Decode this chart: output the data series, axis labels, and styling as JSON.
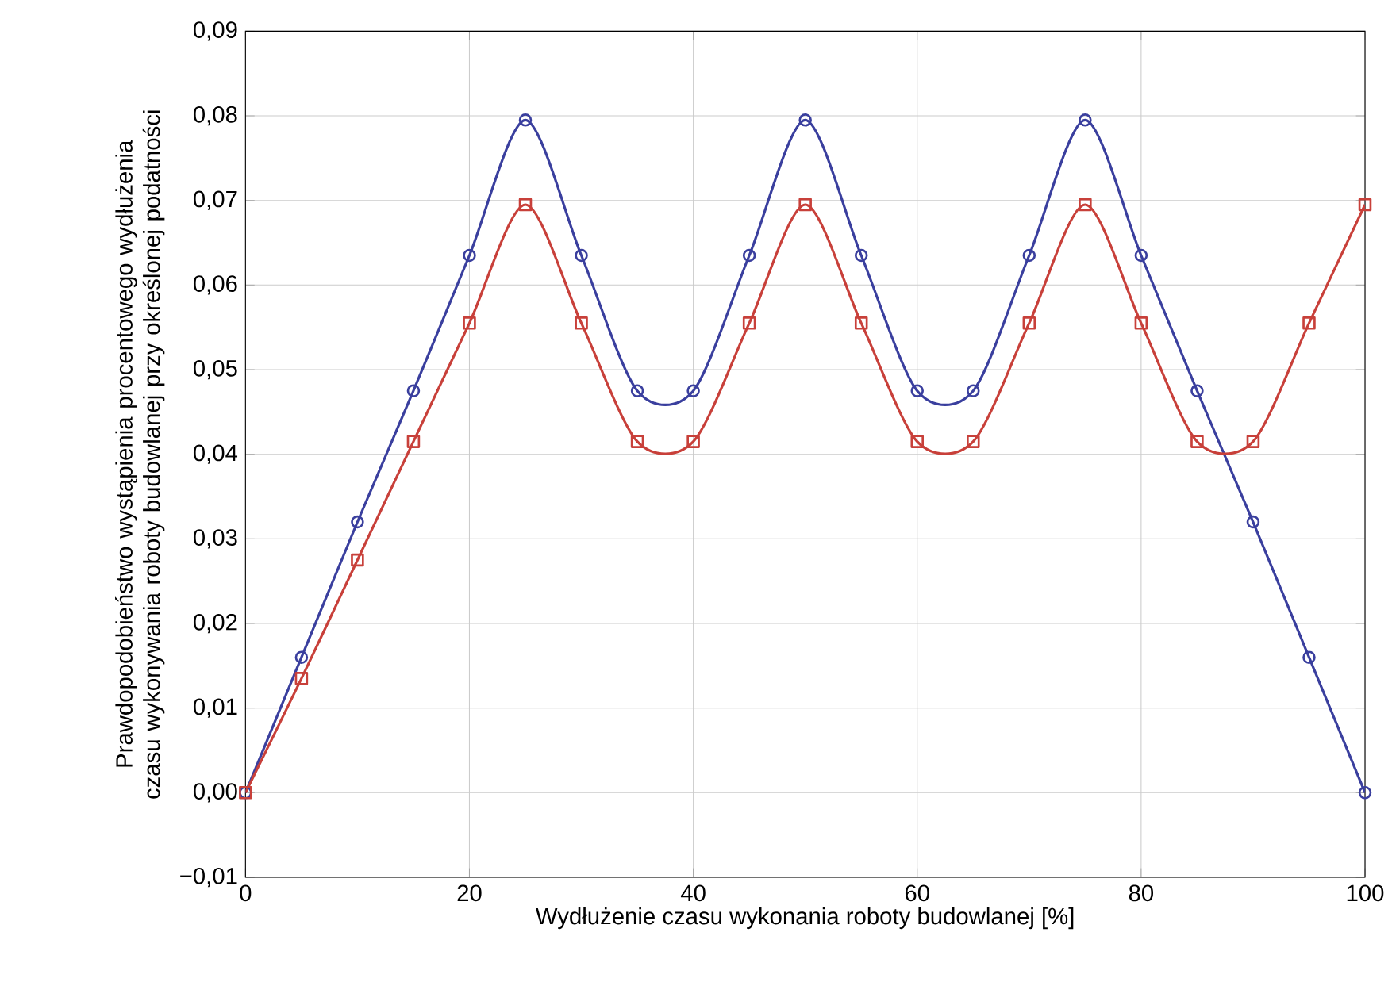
{
  "chart_data": {
    "type": "line",
    "xlabel": "Wydłużenie czasu wykonania roboty budowlanej [%]",
    "ylabel": "Prawdopodobieństwo wystąpienia procentowego wydłużenia czasu wykonywania roboty budowlanej przy określonej podatności",
    "x": [
      0,
      5,
      10,
      15,
      20,
      25,
      30,
      35,
      40,
      45,
      50,
      55,
      60,
      65,
      70,
      75,
      80,
      85,
      90,
      95,
      100
    ],
    "series": [
      {
        "color": "#3a3f9e",
        "marker": "circle",
        "values": [
          0,
          0.016,
          0.032,
          0.0475,
          0.0635,
          0.0795,
          0.0635,
          0.0475,
          0.0475,
          0.0635,
          0.0795,
          0.0635,
          0.0475,
          0.0475,
          0.0635,
          0.0795,
          0.0635,
          0.0475,
          0.032,
          0.016,
          0
        ]
      },
      {
        "color": "#c8403a",
        "marker": "square",
        "values": [
          0,
          0.0135,
          0.0275,
          0.0415,
          0.0555,
          0.0695,
          0.0555,
          0.0415,
          0.0415,
          0.0555,
          0.0695,
          0.0555,
          0.0415,
          0.0415,
          0.0555,
          0.0695,
          0.0555,
          0.0415,
          0.0415,
          0.0555,
          0.0695
        ]
      }
    ],
    "xlim": [
      0,
      100
    ],
    "xticks": [
      0,
      20,
      40,
      60,
      80,
      100
    ],
    "ylim": [
      -0.01,
      0.09
    ],
    "yticks": [
      {
        "value": -0.01,
        "label": "−0,01"
      },
      {
        "value": 0,
        "label": "0,00"
      },
      {
        "value": 0.01,
        "label": "0,01"
      },
      {
        "value": 0.02,
        "label": "0,02"
      },
      {
        "value": 0.03,
        "label": "0,03"
      },
      {
        "value": 0.04,
        "label": "0,04"
      },
      {
        "value": 0.05,
        "label": "0,05"
      },
      {
        "value": 0.06,
        "label": "0,06"
      },
      {
        "value": 0.07,
        "label": "0,07"
      },
      {
        "value": 0.08,
        "label": "0,08"
      },
      {
        "value": 0.09,
        "label": "0,09"
      }
    ],
    "grid": true,
    "line_style": "solid"
  }
}
